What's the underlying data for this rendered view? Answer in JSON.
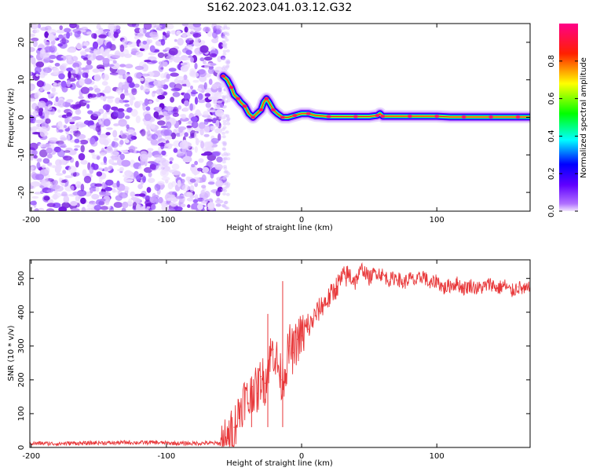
{
  "title": "S162.2023.041.03.12.G32",
  "colors": {
    "snr_line": "#e8383a",
    "axis": "#000000",
    "noise_purple": "#7a1ee6"
  },
  "chart_data": [
    {
      "type": "heatmap",
      "xlabel": "Height of straight line (km)",
      "ylabel": "Frequency (Hz)",
      "xlim": [
        -201,
        169
      ],
      "ylim": [
        -25,
        25
      ],
      "x_ticks": [
        "-200",
        "-100",
        "0",
        "100"
      ],
      "x_tick_values": [
        -200,
        -100,
        0,
        100
      ],
      "y_ticks": [
        "-20",
        "-10",
        "0",
        "10",
        "20"
      ],
      "y_tick_values": [
        -20,
        -10,
        0,
        10,
        20
      ],
      "colorbar": {
        "label": "Normalized spectral amplitude",
        "range": [
          0,
          1
        ],
        "ticks": [
          "0.0",
          "0.2",
          "0.4",
          "0.6",
          "0.8"
        ],
        "tick_values": [
          0.0,
          0.2,
          0.4,
          0.6,
          0.8
        ],
        "colormap": [
          "#f2e6ff",
          "#7a00ff",
          "#0000ff",
          "#00ffff",
          "#00ff00",
          "#ffff00",
          "#ff0000",
          "#ff0088"
        ]
      },
      "noise_region_x": [
        -201,
        -58
      ],
      "signal_track": {
        "x": [
          -58,
          -55,
          -52,
          -50,
          -47,
          -45,
          -42,
          -39,
          -36,
          -33,
          -30,
          -28,
          -26,
          -24,
          -21,
          -18,
          -14,
          -10,
          -5,
          0,
          5,
          10,
          20,
          30,
          40,
          50,
          56,
          58,
          60,
          70,
          80,
          90,
          100,
          110,
          120,
          130,
          140,
          150,
          160,
          169
        ],
        "y": [
          11,
          10,
          8,
          6,
          5,
          4,
          3,
          1,
          0,
          1,
          2,
          4,
          5,
          4,
          2,
          1,
          0,
          0,
          0.5,
          1,
          1,
          0.5,
          0.2,
          0.2,
          0.2,
          0.2,
          0.5,
          1,
          0.3,
          0.3,
          0.3,
          0.3,
          0.3,
          0.1,
          0.1,
          0.1,
          0.1,
          0.1,
          0.1,
          0.1
        ]
      }
    },
    {
      "type": "line",
      "xlabel": "Height of straight line (km)",
      "ylabel": "SNR (10 * v/v)",
      "xlim": [
        -201,
        169
      ],
      "ylim": [
        0,
        555
      ],
      "x_ticks": [
        "-200",
        "-100",
        "0",
        "100"
      ],
      "x_tick_values": [
        -200,
        -100,
        0,
        100
      ],
      "y_ticks": [
        "0",
        "100",
        "200",
        "300",
        "400",
        "500"
      ],
      "y_tick_values": [
        0,
        100,
        200,
        300,
        400,
        500
      ],
      "series": [
        {
          "x": [
            -201,
            -190,
            -180,
            -170,
            -160,
            -150,
            -140,
            -130,
            -120,
            -110,
            -100,
            -90,
            -80,
            -70,
            -60,
            -55,
            -50,
            -45,
            -42,
            -39,
            -36,
            -33,
            -30,
            -27,
            -24,
            -21,
            -18,
            -15,
            -12,
            -9,
            -6,
            -3,
            0,
            5,
            10,
            15,
            20,
            25,
            30,
            35,
            40,
            45,
            50,
            55,
            60,
            65,
            70,
            75,
            80,
            85,
            90,
            95,
            100,
            105,
            110,
            115,
            120,
            125,
            130,
            135,
            140,
            145,
            150,
            155,
            160,
            165,
            169
          ],
          "y": [
            12,
            12,
            11,
            13,
            12,
            14,
            13,
            15,
            14,
            15,
            13,
            12,
            12,
            13,
            12,
            20,
            60,
            120,
            150,
            130,
            180,
            160,
            210,
            190,
            260,
            290,
            250,
            200,
            230,
            300,
            280,
            320,
            330,
            350,
            390,
            420,
            440,
            470,
            500,
            510,
            495,
            530,
            500,
            520,
            510,
            495,
            505,
            485,
            500,
            490,
            510,
            480,
            495,
            470,
            480,
            485,
            470,
            480,
            470,
            475,
            485,
            470,
            480,
            460,
            475,
            465,
            470
          ]
        }
      ],
      "annotations": [
        {
          "x": -37,
          "y": 210
        },
        {
          "x": -25,
          "y": 395
        },
        {
          "x": -14,
          "y": 492
        }
      ]
    }
  ]
}
